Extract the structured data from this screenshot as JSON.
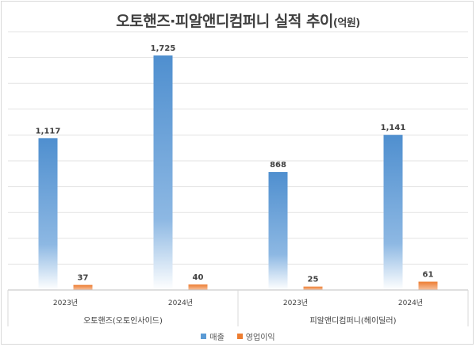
{
  "chart_data": {
    "type": "bar",
    "title": "오토핸즈·피알앤디컴퍼니 실적 추이",
    "title_unit": "(억원)",
    "groups": [
      {
        "name": "오토핸즈(오토인사이드)",
        "categories": [
          "2023년",
          "2024년"
        ]
      },
      {
        "name": "피알앤디컴퍼니(헤이딜러)",
        "categories": [
          "2023년",
          "2024년"
        ]
      }
    ],
    "categories": [
      "2023년",
      "2024년",
      "2023년",
      "2024년"
    ],
    "series": [
      {
        "name": "매출",
        "values": [
          1117,
          1725,
          868,
          1141
        ],
        "labels": [
          "1,117",
          "1,725",
          "868",
          "1,141"
        ],
        "color": "#5b9bd5"
      },
      {
        "name": "영업이익",
        "values": [
          37,
          40,
          25,
          61
        ],
        "labels": [
          "37",
          "40",
          "25",
          "61"
        ],
        "color": "#ed7d31"
      }
    ],
    "ylim": [
      0,
      1900
    ],
    "grid": true,
    "legend_position": "bottom"
  }
}
